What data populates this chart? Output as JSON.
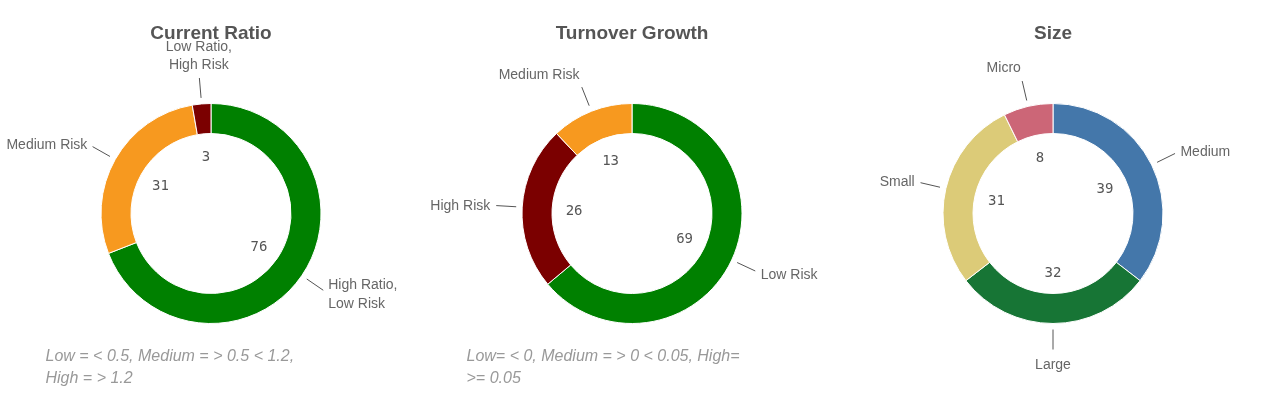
{
  "chart_data": [
    {
      "type": "donut",
      "title": "Current Ratio",
      "categories": [
        "High Ratio, Low Risk",
        "Medium Risk",
        "Low Ratio, High Risk"
      ],
      "values": [
        76,
        31,
        3
      ],
      "colors": [
        "#008000",
        "#f7991f",
        "#7b0000"
      ],
      "data_labels": true,
      "annotations": [
        "Low = < 0.5, Medium = > 0.5 < 1.2, High = > 1.2"
      ]
    },
    {
      "type": "donut",
      "title": "Turnover Growth",
      "categories": [
        "Low Risk",
        "High Risk",
        "Medium Risk"
      ],
      "values": [
        69,
        26,
        13
      ],
      "colors": [
        "#008000",
        "#7b0000",
        "#f7991f"
      ],
      "data_labels": true,
      "annotations": [
        "Low= < 0, Medium = > 0 < 0.05, High= >= 0.05"
      ]
    },
    {
      "type": "donut",
      "title": "Size",
      "categories": [
        "Medium",
        "Large",
        "Small",
        "Micro"
      ],
      "values": [
        39,
        32,
        31,
        8
      ],
      "colors": [
        "#4477aa",
        "#177535",
        "#dccb78",
        "#cc6677"
      ],
      "data_labels": true
    }
  ]
}
